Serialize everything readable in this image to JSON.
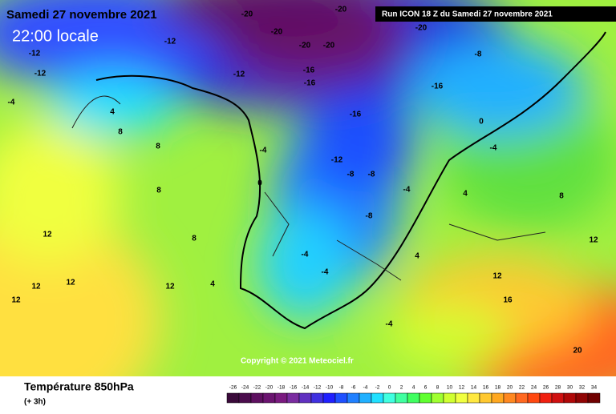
{
  "header": {
    "date": "Samedi 27 novembre 2021",
    "time": "22:00 locale",
    "run": "Run ICON 18 Z du Samedi 27 novembre 2021"
  },
  "copyright": "Copyright © 2021 Meteociel.fr",
  "footer": {
    "title": "Température 850hPa",
    "step": "(+ 3h)"
  },
  "colorbar": {
    "ticks": [
      -26,
      -24,
      -22,
      -20,
      -18,
      -16,
      -14,
      -12,
      -10,
      -8,
      -6,
      -4,
      -2,
      0,
      2,
      4,
      6,
      8,
      10,
      12,
      14,
      16,
      18,
      20,
      22,
      24,
      26,
      28,
      30,
      32,
      34
    ],
    "colors": [
      "#3a0a3a",
      "#4b0d4d",
      "#5e1060",
      "#6b1470",
      "#7a1a80",
      "#7a2ca0",
      "#6030c0",
      "#4030e0",
      "#2020ff",
      "#1e50ff",
      "#2080ff",
      "#20b0ff",
      "#20e0ff",
      "#40ffe0",
      "#40ffa0",
      "#40ff60",
      "#60ff30",
      "#a0ff30",
      "#d0ff30",
      "#f0ff40",
      "#ffe840",
      "#ffc830",
      "#ffa820",
      "#ff8820",
      "#ff6820",
      "#ff4810",
      "#f02010",
      "#d01010",
      "#b00808",
      "#900404",
      "#700000"
    ]
  },
  "map_labels": [
    -20,
    -20,
    -20,
    -20,
    -20,
    -20,
    -12,
    -12,
    -12,
    -12,
    -16,
    -16,
    -16,
    -16,
    -12,
    -8,
    -8,
    -4,
    -8,
    0,
    -4,
    8,
    8,
    8,
    8,
    12,
    12,
    12,
    12,
    12,
    4,
    -4,
    -4,
    -4,
    4,
    12,
    16,
    20,
    4,
    -4,
    0,
    4,
    8,
    12,
    -4,
    -8
  ]
}
